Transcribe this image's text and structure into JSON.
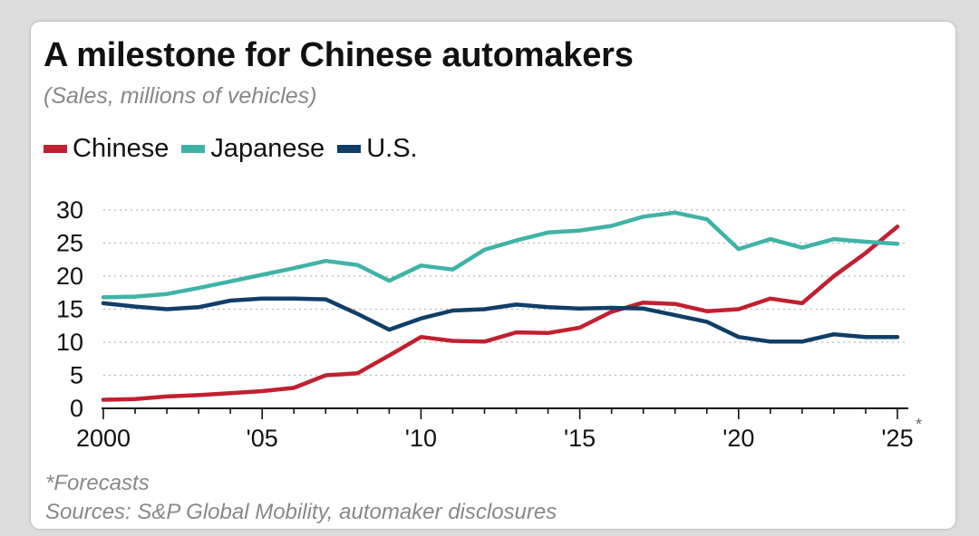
{
  "header": {
    "title": "A milestone for Chinese automakers",
    "subtitle": "(Sales, millions of vehicles)"
  },
  "footer": {
    "forecast_note": "*Forecasts",
    "sources": "Sources: S&P Global Mobility, automaker disclosures"
  },
  "chart_data": {
    "type": "line",
    "title": "A milestone for Chinese automakers",
    "subtitle": "(Sales, millions of vehicles)",
    "xlabel": "",
    "ylabel": "",
    "x": [
      2000,
      2001,
      2002,
      2003,
      2004,
      2005,
      2006,
      2007,
      2008,
      2009,
      2010,
      2011,
      2012,
      2013,
      2014,
      2015,
      2016,
      2017,
      2018,
      2019,
      2020,
      2021,
      2022,
      2023,
      2024,
      2025
    ],
    "xlim": [
      2000,
      2025
    ],
    "ylim": [
      0,
      30
    ],
    "yticks": [
      0,
      5,
      10,
      15,
      20,
      25,
      30
    ],
    "xticks": [
      {
        "value": 2000,
        "label": "2000"
      },
      {
        "value": 2005,
        "label": "'05"
      },
      {
        "value": 2010,
        "label": "'10"
      },
      {
        "value": 2015,
        "label": "'15"
      },
      {
        "value": 2020,
        "label": "'20"
      },
      {
        "value": 2025,
        "label": "'25"
      }
    ],
    "forecast_marker": "*",
    "grid": "horizontal dotted",
    "legend_position": "top-left",
    "series": [
      {
        "name": "Chinese",
        "color": "#c0202f",
        "values": [
          1.3,
          1.4,
          1.8,
          2.0,
          2.3,
          2.6,
          3.1,
          5.0,
          5.3,
          8.0,
          10.8,
          10.2,
          10.1,
          11.5,
          11.4,
          12.2,
          14.6,
          16.0,
          15.8,
          14.7,
          15.0,
          16.6,
          15.9,
          20.0,
          23.5,
          27.5
        ]
      },
      {
        "name": "Japanese",
        "color": "#3fb3a6",
        "values": [
          16.8,
          16.9,
          17.3,
          18.2,
          19.2,
          20.2,
          21.2,
          22.3,
          21.7,
          19.3,
          21.6,
          21.0,
          24.0,
          25.4,
          26.6,
          26.9,
          27.6,
          29.0,
          29.6,
          28.6,
          24.1,
          25.6,
          24.3,
          25.6,
          25.2,
          24.9
        ]
      },
      {
        "name": "U.S.",
        "color": "#0f3e66",
        "values": [
          15.9,
          15.4,
          15.0,
          15.3,
          16.3,
          16.6,
          16.6,
          16.5,
          14.3,
          11.9,
          13.6,
          14.8,
          15.0,
          15.7,
          15.3,
          15.1,
          15.2,
          15.1,
          14.1,
          13.1,
          10.8,
          10.1,
          10.1,
          11.2,
          10.8,
          10.8
        ]
      }
    ]
  }
}
